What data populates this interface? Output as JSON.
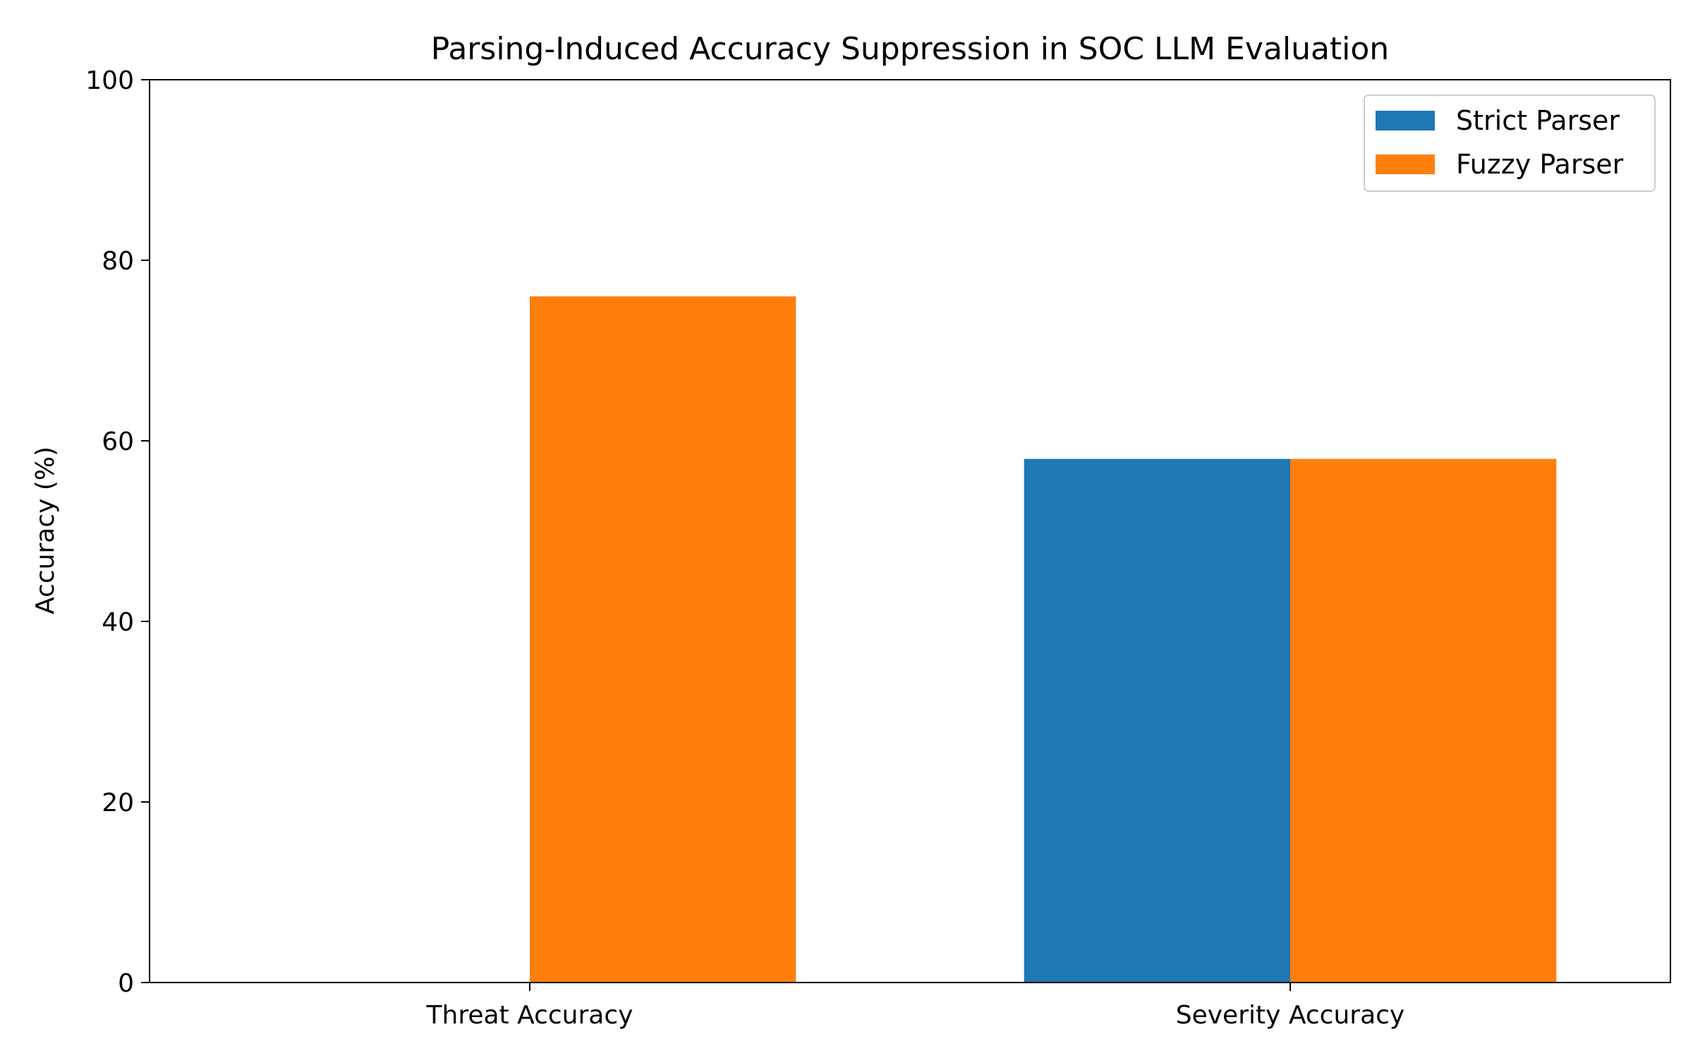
{
  "chart_data": {
    "type": "bar",
    "title": "Parsing-Induced Accuracy Suppression in SOC LLM Evaluation",
    "xlabel": "",
    "ylabel": "Accuracy (%)",
    "categories": [
      "Threat Accuracy",
      "Severity Accuracy"
    ],
    "series": [
      {
        "name": "Strict Parser",
        "color": "#1f77b4",
        "values": [
          0,
          58
        ]
      },
      {
        "name": "Fuzzy Parser",
        "color": "#ff7f0e",
        "values": [
          76,
          58
        ]
      }
    ],
    "ylim": [
      0,
      100
    ],
    "yticks": [
      0,
      20,
      40,
      60,
      80,
      100
    ],
    "grid": false,
    "legend_position": "top-right"
  }
}
